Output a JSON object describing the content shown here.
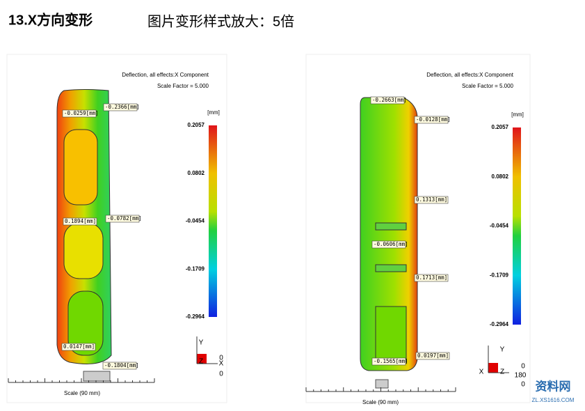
{
  "header": {
    "title": "13.X方向变形",
    "subtitle": "图片变形样式放大：5倍"
  },
  "panels": [
    {
      "caption": "Deflection, all effects:X Component",
      "scale_factor": "Scale Factor = 5.000",
      "unit": "[mm]",
      "legend": [
        "0.2057",
        "0.0802",
        "-0.0454",
        "-0.1709",
        "-0.2964"
      ],
      "probes": [
        "-0.0259[mm]",
        "-0.2366[mm]",
        "0.1894[mm]",
        "-0.0782[mm]",
        "0.0147[mm]",
        "-0.1804[mm]"
      ],
      "scale": "Scale (90 mm)",
      "axes": [
        "Y",
        "Z",
        "X",
        "0",
        "0"
      ]
    },
    {
      "caption": "Deflection, all effects:X Component",
      "scale_factor": "Scale Factor = 5.000",
      "unit": "[mm]",
      "legend": [
        "0.2057",
        "0.0802",
        "-0.0454",
        "-0.1709",
        "-0.2964"
      ],
      "probes": [
        "-0.2663[mm]",
        "-0.0128[mm]",
        "0.1313[mm]",
        "-0.0606[mm]",
        "0.1713[mm]",
        "-0.1565[mm]",
        "0.0197[mm]"
      ],
      "scale": "Scale (90 mm)",
      "axes": [
        "Y",
        "X",
        "Z",
        "0",
        "180",
        "0"
      ]
    }
  ],
  "watermark": {
    "name": "资料网",
    "url": "ZL.XS1616.COM"
  }
}
